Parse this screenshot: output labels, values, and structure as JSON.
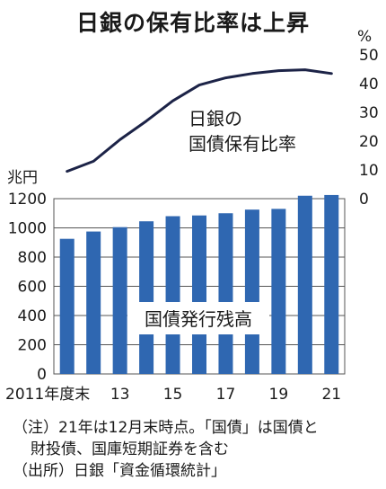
{
  "chart_data": {
    "type": "bar+line",
    "title": "日銀の保有比率は上昇",
    "x_tick_labels": [
      "2011年度末",
      "13",
      "15",
      "17",
      "19",
      "21"
    ],
    "categories": [
      "2011",
      "2012",
      "2013",
      "2014",
      "2015",
      "2016",
      "2017",
      "2018",
      "2019",
      "2020",
      "2021"
    ],
    "bar_series": {
      "name": "国債発行残高",
      "unit": "兆円",
      "values": [
        925,
        975,
        1005,
        1045,
        1080,
        1085,
        1100,
        1125,
        1130,
        1220,
        1225
      ],
      "ylim": [
        0,
        1200
      ],
      "yticks": [
        0,
        200,
        400,
        600,
        800,
        1000,
        1200
      ],
      "color": "#2f67b1"
    },
    "line_series": {
      "name": "日銀の\n国債保有比率",
      "unit": "%",
      "values": [
        9.5,
        13,
        20.5,
        27,
        34,
        39.5,
        42,
        43.5,
        44.5,
        44.8,
        43.5
      ],
      "ylim": [
        0,
        50
      ],
      "yticks": [
        0,
        10,
        20,
        30,
        40,
        50
      ],
      "color": "#1c2347"
    },
    "grid": true
  },
  "notes": {
    "line1": "（注）21年は12月末時点。「国債」は国債と",
    "line2": "財投債、国庫短期証券を含む",
    "line3": "（出所）日銀「資金循環統計」"
  }
}
